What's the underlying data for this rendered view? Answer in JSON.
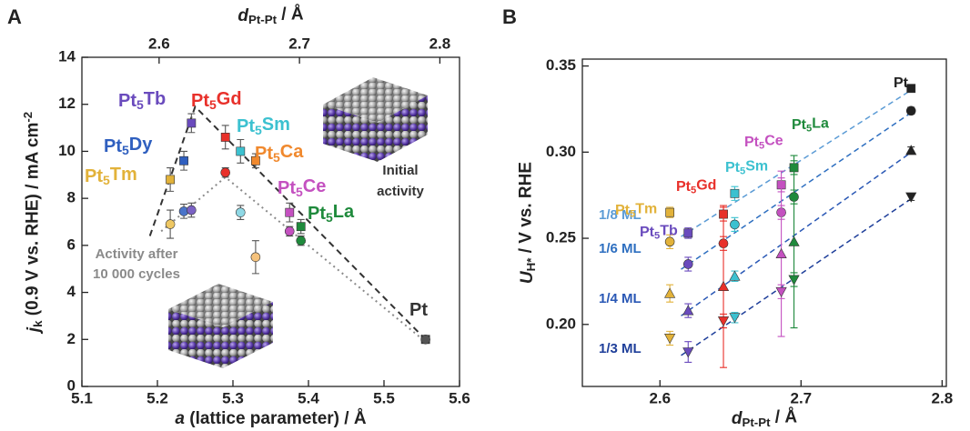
{
  "chart_data": [
    {
      "panel": "A",
      "type": "scatter",
      "xlabel": "a (lattice parameter) / Å",
      "ylabel": "jk (0.9 V vs. RHE) / mA cm-2",
      "x2label": "dPt-Pt / Å",
      "xlim": [
        5.1,
        5.6
      ],
      "xticks": [
        5.1,
        5.2,
        5.3,
        5.4,
        5.5,
        5.6
      ],
      "x2lim": [
        2.545,
        2.814
      ],
      "x2ticks": [
        2.6,
        2.7,
        2.8
      ],
      "ylim": [
        0,
        14
      ],
      "yticks": [
        0,
        2,
        4,
        6,
        8,
        10,
        12,
        14
      ],
      "labels": [
        "Pt5Tm",
        "Pt5Dy",
        "Pt5Tb",
        "Pt5Gd",
        "Pt5Sm",
        "Pt5Ca",
        "Pt5Ce",
        "Pt5La",
        "Pt"
      ],
      "label_colors": [
        "#e2b23a",
        "#2f5fbf",
        "#6a4bbd",
        "#e8302a",
        "#3cc1d0",
        "#f0892e",
        "#c451c0",
        "#1f8a3c",
        "#333333"
      ],
      "series": [
        {
          "name": "Initial activity",
          "marker": "square",
          "text_color": "#333333",
          "x": [
            5.217,
            5.235,
            5.245,
            5.29,
            5.31,
            5.33,
            5.375,
            5.39,
            5.555
          ],
          "values": [
            8.8,
            9.6,
            11.2,
            10.6,
            10.0,
            9.6,
            7.4,
            6.8,
            2.0
          ],
          "errors": [
            0.5,
            0.4,
            0.4,
            0.5,
            0.5,
            0.3,
            0.4,
            0.3,
            0.1
          ],
          "colors": [
            "#e2b23a",
            "#2f5fbf",
            "#6a4bbd",
            "#e8302a",
            "#3cc1d0",
            "#f0892e",
            "#c451c0",
            "#1f8a3c",
            "#333333"
          ]
        },
        {
          "name": "Activity after 10 000 cycles",
          "marker": "circle",
          "text_color": "#8a8a8a",
          "x": [
            5.217,
            5.235,
            5.245,
            5.29,
            5.31,
            5.33,
            5.375,
            5.39,
            5.555
          ],
          "values": [
            6.9,
            7.45,
            7.5,
            9.1,
            7.4,
            5.5,
            6.6,
            6.2,
            2.0
          ],
          "errors": [
            0.6,
            0.3,
            0.3,
            0.2,
            0.3,
            0.7,
            0.2,
            0.2,
            0.1
          ],
          "colors": [
            "#eec763",
            "#4a74c9",
            "#7b62c4",
            "#e8302a",
            "#8fd8e5",
            "#f5c27c",
            "#c451c0",
            "#1f8a3c",
            "#555555"
          ]
        }
      ],
      "guides": [
        {
          "style": "dashed",
          "color": "#333333",
          "x": [
            5.19,
            5.25,
            5.555
          ],
          "values": [
            6.4,
            11.9,
            2.0
          ]
        },
        {
          "style": "dotted",
          "color": "#8a8a8a",
          "x": [
            5.205,
            5.29,
            5.555
          ],
          "values": [
            6.6,
            8.9,
            1.9
          ]
        }
      ]
    },
    {
      "panel": "B",
      "type": "scatter",
      "xlabel": "dPt-Pt / Å",
      "ylabel": "UH* / V vs. RHE",
      "xlim": [
        2.545,
        2.803
      ],
      "xticks": [
        2.6,
        2.7,
        2.8
      ],
      "ylim": [
        0.164,
        0.354
      ],
      "yticks": [
        {
          "value": 0.2,
          "label": "0.20"
        },
        0.25,
        {
          "value": 0.3,
          "label": "0.30"
        },
        0.35
      ],
      "levels": [
        {
          "name": "1/8 ML",
          "color": "#5b9bd5",
          "marker": "square",
          "fit_x": [
            2.615,
            2.78
          ],
          "fit_values": [
            0.251,
            0.337
          ]
        },
        {
          "name": "1/6 ML",
          "color": "#2e6fc0",
          "marker": "circle",
          "fit_x": [
            2.615,
            2.78
          ],
          "fit_values": [
            0.232,
            0.324
          ]
        },
        {
          "name": "1/4 ML",
          "color": "#2a58b5",
          "marker": "triangle-up",
          "fit_x": [
            2.615,
            2.78
          ],
          "fit_values": [
            0.205,
            0.301
          ]
        },
        {
          "name": "1/3 ML",
          "color": "#1f3f9a",
          "marker": "triangle-down",
          "fit_x": [
            2.615,
            2.78
          ],
          "fit_values": [
            0.182,
            0.274
          ]
        }
      ],
      "series": [
        {
          "name": "Pt5Tm",
          "color": "#e2b23a",
          "x": 2.607,
          "values": [
            0.265,
            0.248,
            0.218,
            0.192
          ],
          "errors": [
            0.003,
            0.004,
            0.005,
            0.004
          ]
        },
        {
          "name": "Pt5Tb",
          "color": "#6a4bbd",
          "x": 2.62,
          "values": [
            0.253,
            0.235,
            0.208,
            0.184
          ],
          "errors": [
            0.003,
            0.004,
            0.004,
            0.006
          ]
        },
        {
          "name": "Pt5Gd",
          "color": "#e8302a",
          "x": 2.645,
          "values": [
            0.264,
            0.247,
            0.222,
            0.202
          ],
          "errors": [
            0.004,
            0.004,
            0.047,
            0.004
          ]
        },
        {
          "name": "Pt5Sm",
          "color": "#3cc1d0",
          "x": 2.653,
          "values": [
            0.276,
            0.258,
            0.228,
            0.204
          ],
          "errors": [
            0.004,
            0.004,
            0.003,
            0.003
          ]
        },
        {
          "name": "Pt5Ce",
          "color": "#c451c0",
          "x": 2.686,
          "values": [
            0.281,
            0.265,
            0.241,
            0.219
          ],
          "errors": [
            0.004,
            0.004,
            0.048,
            0.004
          ]
        },
        {
          "name": "Pt5La",
          "color": "#1f8a3c",
          "x": 2.695,
          "values": [
            0.291,
            0.274,
            0.248,
            0.226
          ],
          "errors": [
            0.004,
            0.004,
            0.05,
            0.004
          ]
        },
        {
          "name": "Pt",
          "color": "#222222",
          "x": 2.778,
          "values": [
            0.337,
            0.324,
            0.301,
            0.274
          ],
          "errors": [
            0.002,
            0.002,
            0.002,
            0.002
          ]
        }
      ]
    }
  ]
}
